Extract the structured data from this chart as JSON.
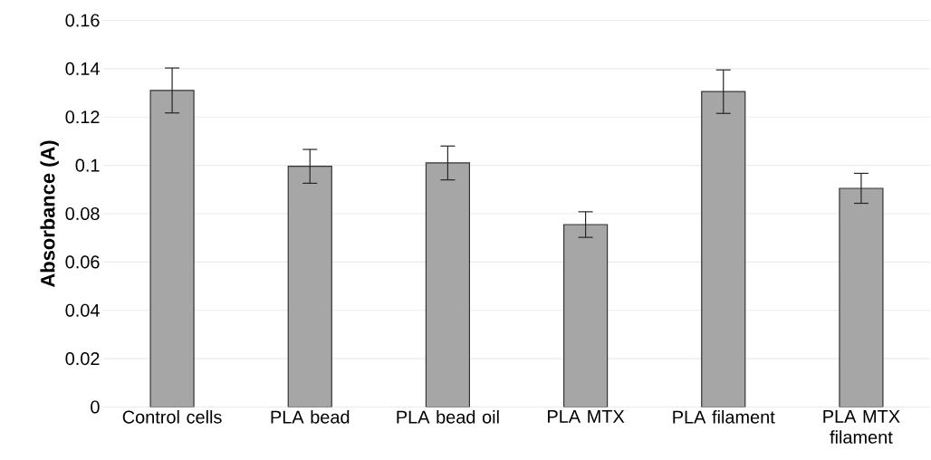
{
  "chart_data": {
    "type": "bar",
    "ylabel": "Absorbance (A)",
    "categories": [
      "Control cells",
      "PLA bead",
      "PLA bead oil",
      "PLA MTX",
      "PLA filament",
      "PLA MTX filament"
    ],
    "values": [
      0.131,
      0.0996,
      0.101,
      0.0755,
      0.1305,
      0.0905
    ],
    "errors": [
      0.0093,
      0.007,
      0.007,
      0.0053,
      0.009,
      0.0062
    ],
    "color": "#a6a6a6",
    "ylim": [
      0,
      0.16
    ],
    "yticks": [
      0,
      0.02,
      0.04,
      0.06,
      0.08,
      0.1,
      0.12,
      0.14,
      0.16
    ],
    "grid": "y"
  }
}
